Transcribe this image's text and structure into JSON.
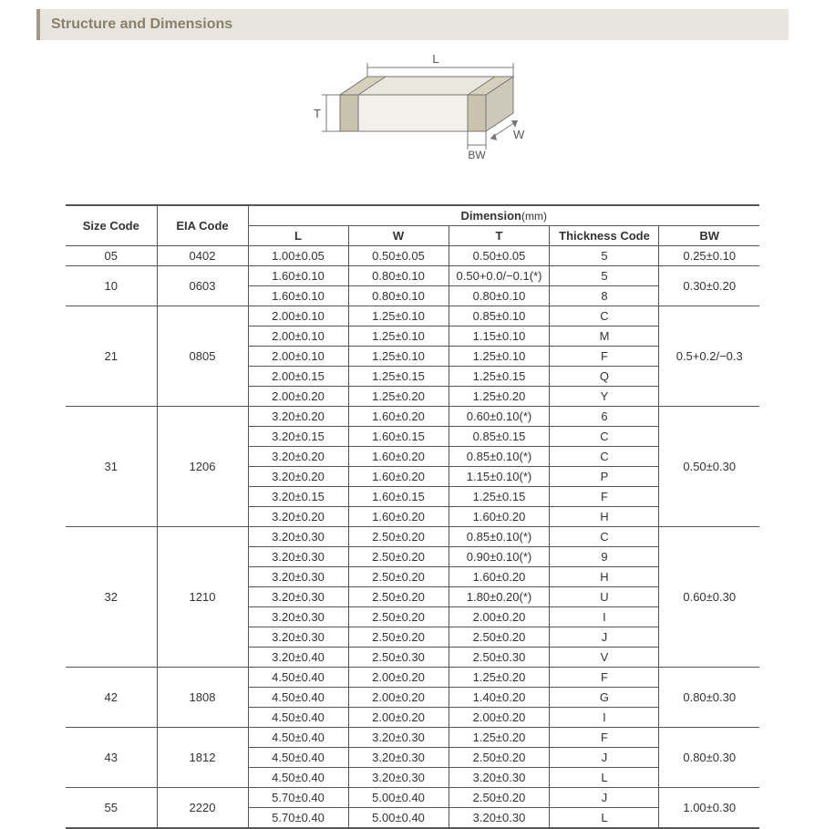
{
  "header": {
    "title": "Structure and Dimensions"
  },
  "diagram": {
    "labels": {
      "L": "L",
      "W": "W",
      "T": "T",
      "BW": "BW"
    },
    "stroke": "#777",
    "fill_top": "#d8d5cc",
    "fill_side": "#c0bcae",
    "fill_front": "#eeece5",
    "band_fill": "#b0a98f"
  },
  "table": {
    "header": {
      "sizeCode": "Size Code",
      "eiaCode": "EIA Code",
      "dimension": "Dimension",
      "dimension_unit": "(mm)",
      "L": "L",
      "W": "W",
      "T": "T",
      "thicknessCode": "Thickness Code",
      "BW": "BW"
    },
    "groups": [
      {
        "sizeCode": "05",
        "eiaCode": "0402",
        "bw": "0.25±0.10",
        "rows": [
          {
            "L": "1.00±0.05",
            "W": "0.50±0.05",
            "T": "0.50±0.05",
            "tc": "5"
          }
        ]
      },
      {
        "sizeCode": "10",
        "eiaCode": "0603",
        "bw": "0.30±0.20",
        "rows": [
          {
            "L": "1.60±0.10",
            "W": "0.80±0.10",
            "T": "0.50+0.0/−0.1(*)",
            "tc": "5"
          },
          {
            "L": "1.60±0.10",
            "W": "0.80±0.10",
            "T": "0.80±0.10",
            "tc": "8"
          }
        ]
      },
      {
        "sizeCode": "21",
        "eiaCode": "0805",
        "bw": "0.5+0.2/−0.3",
        "rows": [
          {
            "L": "2.00±0.10",
            "W": "1.25±0.10",
            "T": "0.85±0.10",
            "tc": "C"
          },
          {
            "L": "2.00±0.10",
            "W": "1.25±0.10",
            "T": "1.15±0.10",
            "tc": "M"
          },
          {
            "L": "2.00±0.10",
            "W": "1.25±0.10",
            "T": "1.25±0.10",
            "tc": "F"
          },
          {
            "L": "2.00±0.15",
            "W": "1.25±0.15",
            "T": "1.25±0.15",
            "tc": "Q"
          },
          {
            "L": "2.00±0.20",
            "W": "1.25±0.20",
            "T": "1.25±0.20",
            "tc": "Y"
          }
        ]
      },
      {
        "sizeCode": "31",
        "eiaCode": "1206",
        "bw": "0.50±0.30",
        "rows": [
          {
            "L": "3.20±0.20",
            "W": "1.60±0.20",
            "T": "0.60±0.10(*)",
            "tc": "6"
          },
          {
            "L": "3.20±0.15",
            "W": "1.60±0.15",
            "T": "0.85±0.15",
            "tc": "C"
          },
          {
            "L": "3.20±0.20",
            "W": "1.60±0.20",
            "T": "0.85±0.10(*)",
            "tc": "C"
          },
          {
            "L": "3.20±0.20",
            "W": "1.60±0.20",
            "T": "1.15±0.10(*)",
            "tc": "P"
          },
          {
            "L": "3.20±0.15",
            "W": "1.60±0.15",
            "T": "1.25±0.15",
            "tc": "F"
          },
          {
            "L": "3.20±0.20",
            "W": "1.60±0.20",
            "T": "1.60±0.20",
            "tc": "H"
          }
        ]
      },
      {
        "sizeCode": "32",
        "eiaCode": "1210",
        "bw": "0.60±0.30",
        "rows": [
          {
            "L": "3.20±0.30",
            "W": "2.50±0.20",
            "T": "0.85±0.10(*)",
            "tc": "C"
          },
          {
            "L": "3.20±0.30",
            "W": "2.50±0.20",
            "T": "0.90±0.10(*)",
            "tc": "9"
          },
          {
            "L": "3.20±0.30",
            "W": "2.50±0.20",
            "T": "1.60±0.20",
            "tc": "H"
          },
          {
            "L": "3.20±0.30",
            "W": "2.50±0.20",
            "T": "1.80±0.20(*)",
            "tc": "U"
          },
          {
            "L": "3.20±0.30",
            "W": "2.50±0.20",
            "T": "2.00±0.20",
            "tc": "I"
          },
          {
            "L": "3.20±0.30",
            "W": "2.50±0.20",
            "T": "2.50±0.20",
            "tc": "J"
          },
          {
            "L": "3.20±0.40",
            "W": "2.50±0.30",
            "T": "2.50±0.30",
            "tc": "V"
          }
        ]
      },
      {
        "sizeCode": "42",
        "eiaCode": "1808",
        "bw": "0.80±0.30",
        "rows": [
          {
            "L": "4.50±0.40",
            "W": "2.00±0.20",
            "T": "1.25±0.20",
            "tc": "F"
          },
          {
            "L": "4.50±0.40",
            "W": "2.00±0.20",
            "T": "1.40±0.20",
            "tc": "G"
          },
          {
            "L": "4.50±0.40",
            "W": "2.00±0.20",
            "T": "2.00±0.20",
            "tc": "I"
          }
        ]
      },
      {
        "sizeCode": "43",
        "eiaCode": "1812",
        "bw": "0.80±0.30",
        "rows": [
          {
            "L": "4.50±0.40",
            "W": "3.20±0.30",
            "T": "1.25±0.20",
            "tc": "F"
          },
          {
            "L": "4.50±0.40",
            "W": "3.20±0.30",
            "T": "2.50±0.20",
            "tc": "J"
          },
          {
            "L": "4.50±0.40",
            "W": "3.20±0.30",
            "T": "3.20±0.30",
            "tc": "L"
          }
        ]
      },
      {
        "sizeCode": "55",
        "eiaCode": "2220",
        "bw": "1.00±0.30",
        "rows": [
          {
            "L": "5.70±0.40",
            "W": "5.00±0.40",
            "T": "2.50±0.20",
            "tc": "J"
          },
          {
            "L": "5.70±0.40",
            "W": "5.00±0.40",
            "T": "3.20±0.30",
            "tc": "L"
          }
        ]
      }
    ]
  }
}
